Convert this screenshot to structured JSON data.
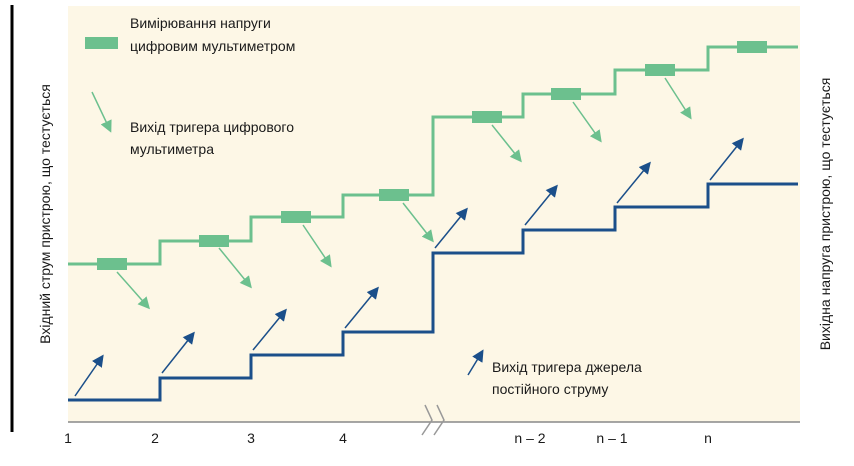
{
  "legend": {
    "measurement": [
      "Вимірювання напруги",
      "цифровим мультиметром"
    ],
    "dmm_trigger": [
      "Вихід тригера цифрового",
      "мультиметра"
    ],
    "source_trigger": [
      "Вихід тригера джерела",
      "постійного струму"
    ]
  },
  "left_axis_label": "Вхідний струм пристрою, що тестується",
  "right_axis_label": "Вихідна напруга пристрою, що тестується",
  "x_labels": [
    "1",
    "2",
    "3",
    "4",
    "n – 2",
    "n – 1",
    "n"
  ]
}
